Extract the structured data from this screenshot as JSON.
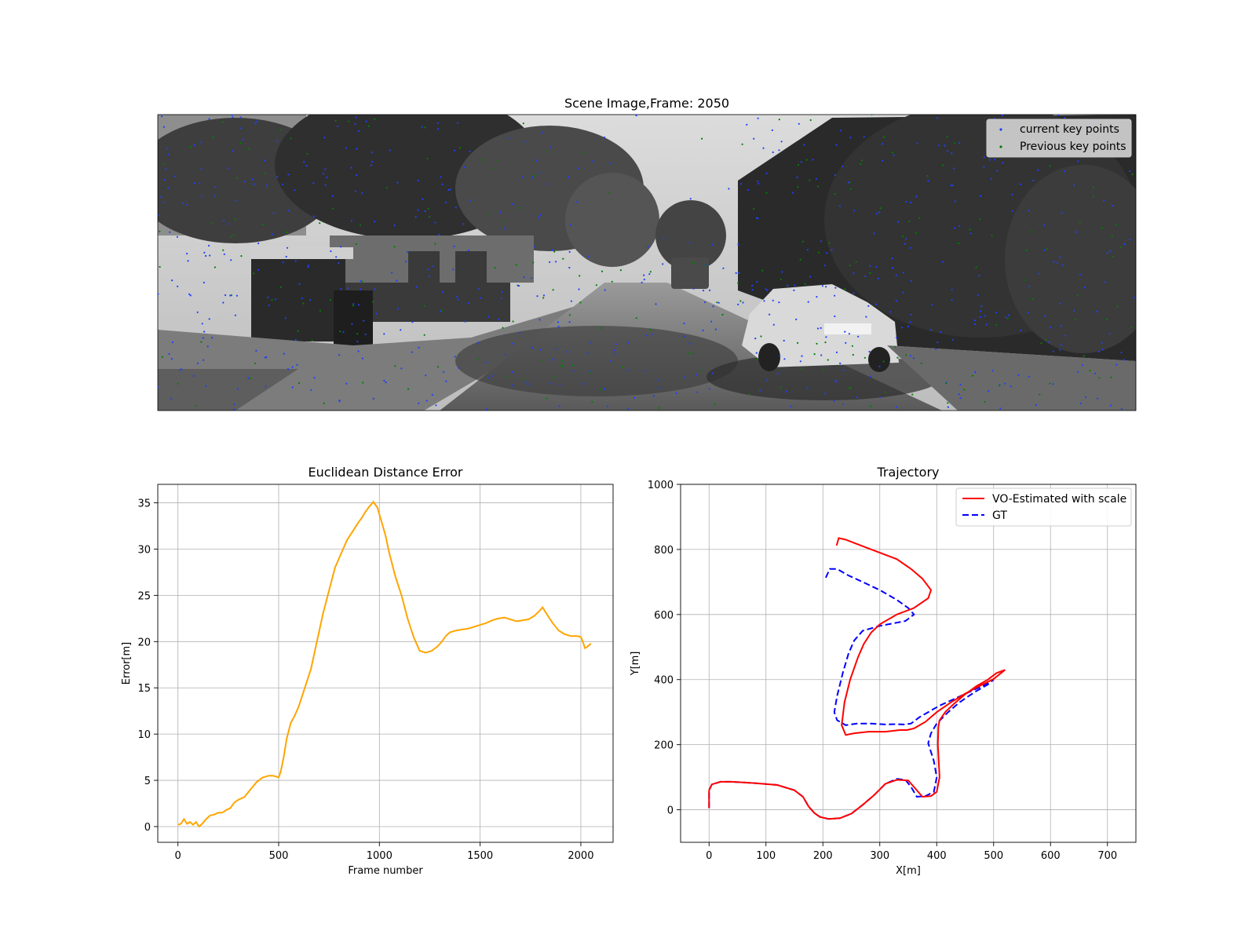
{
  "chart_data": [
    {
      "type": "image",
      "title": "Scene Image,Frame: 2050",
      "legend": {
        "placement": "top-right",
        "entries": [
          {
            "label": "current key points",
            "color": "#1f3fff"
          },
          {
            "label": "Previous key points",
            "color": "#008000"
          }
        ]
      }
    },
    {
      "type": "line",
      "title": "Euclidean Distance Error",
      "xlabel": "Frame number",
      "ylabel": "Error[m]",
      "xlim": [
        -100,
        2160
      ],
      "ylim": [
        -1.7,
        37
      ],
      "xticks": [
        0,
        500,
        1000,
        1500,
        2000
      ],
      "yticks": [
        0,
        5,
        10,
        15,
        20,
        25,
        30,
        35
      ],
      "grid": true,
      "series": [
        {
          "color": "#ffa500",
          "x": [
            0,
            15,
            30,
            45,
            60,
            75,
            90,
            105,
            120,
            140,
            160,
            180,
            200,
            220,
            240,
            260,
            280,
            300,
            330,
            360,
            390,
            420,
            450,
            470,
            490,
            500,
            510,
            525,
            540,
            560,
            580,
            600,
            630,
            660,
            690,
            720,
            750,
            780,
            810,
            840,
            870,
            890,
            900,
            910,
            930,
            950,
            970,
            990,
            1010,
            1030,
            1050,
            1080,
            1110,
            1140,
            1170,
            1200,
            1230,
            1260,
            1290,
            1310,
            1330,
            1350,
            1380,
            1410,
            1440,
            1470,
            1500,
            1530,
            1560,
            1590,
            1620,
            1650,
            1680,
            1710,
            1740,
            1770,
            1790,
            1810,
            1830,
            1860,
            1890,
            1920,
            1950,
            1980,
            2000,
            2010,
            2020,
            2030,
            2050
          ],
          "y": [
            0.2,
            0.3,
            0.8,
            0.3,
            0.5,
            0.2,
            0.5,
            0.0,
            0.3,
            0.8,
            1.2,
            1.3,
            1.5,
            1.5,
            1.8,
            2.0,
            2.6,
            2.9,
            3.2,
            4.0,
            4.8,
            5.3,
            5.5,
            5.5,
            5.4,
            5.3,
            5.9,
            7.5,
            9.5,
            11.2,
            12.0,
            13.0,
            15.0,
            17.0,
            20.0,
            23.0,
            25.5,
            28.0,
            29.5,
            31.0,
            32.0,
            32.7,
            33.0,
            33.3,
            34.0,
            34.6,
            35.1,
            34.5,
            33.0,
            31.5,
            29.5,
            27.0,
            25.0,
            22.5,
            20.5,
            19.0,
            18.8,
            19.0,
            19.5,
            20.0,
            20.6,
            21.0,
            21.2,
            21.3,
            21.4,
            21.6,
            21.8,
            22.0,
            22.3,
            22.5,
            22.6,
            22.4,
            22.2,
            22.3,
            22.4,
            22.8,
            23.2,
            23.7,
            23.0,
            22.0,
            21.2,
            20.8,
            20.6,
            20.6,
            20.5,
            20.0,
            19.3,
            19.4,
            19.8
          ]
        }
      ]
    },
    {
      "type": "line",
      "title": "Trajectory",
      "xlabel": "X[m]",
      "ylabel": "Y[m]",
      "xlim": [
        -50,
        750
      ],
      "ylim": [
        -100,
        1000
      ],
      "xticks": [
        0,
        100,
        200,
        300,
        400,
        500,
        600,
        700
      ],
      "yticks": [
        0,
        200,
        400,
        600,
        800,
        1000
      ],
      "grid": true,
      "legend": {
        "placement": "top-right"
      },
      "series": [
        {
          "name": "VO-Estimated with scale",
          "color": "#ff0000",
          "dash": "solid",
          "x": [
            0,
            0,
            5,
            20,
            40,
            80,
            120,
            150,
            165,
            175,
            185,
            195,
            210,
            230,
            250,
            270,
            290,
            310,
            330,
            350,
            360,
            375,
            390,
            400,
            405,
            402,
            403,
            405,
            415,
            430,
            450,
            470,
            490,
            505,
            520,
            500,
            475,
            450,
            425,
            400,
            380,
            360,
            348,
            335,
            310,
            280,
            255,
            240,
            233,
            238,
            248,
            262,
            272,
            285,
            300,
            330,
            360,
            385,
            390,
            375,
            355,
            330,
            300,
            270,
            240,
            228,
            224
          ],
          "y": [
            5,
            60,
            78,
            86,
            86,
            82,
            76,
            60,
            40,
            10,
            -10,
            -22,
            -28,
            -26,
            -12,
            15,
            45,
            80,
            92,
            90,
            70,
            40,
            42,
            55,
            100,
            200,
            255,
            275,
            300,
            325,
            355,
            380,
            400,
            420,
            430,
            402,
            380,
            357,
            330,
            300,
            270,
            250,
            245,
            245,
            240,
            240,
            235,
            230,
            260,
            330,
            400,
            470,
            510,
            545,
            570,
            600,
            620,
            650,
            675,
            710,
            740,
            770,
            790,
            810,
            830,
            835,
            812
          ]
        },
        {
          "name": "GT",
          "color": "#0000ff",
          "dash": "dashed",
          "x": [
            0,
            0,
            5,
            20,
            40,
            80,
            120,
            150,
            165,
            175,
            185,
            195,
            210,
            230,
            250,
            270,
            290,
            310,
            330,
            345,
            355,
            365,
            380,
            395,
            400,
            395,
            385,
            390,
            400,
            420,
            440,
            455,
            470,
            490,
            500,
            480,
            455,
            430,
            405,
            385,
            370,
            355,
            345,
            330,
            310,
            285,
            260,
            240,
            225,
            220,
            225,
            235,
            245,
            255,
            270,
            300,
            330,
            345,
            360,
            350,
            330,
            300,
            270,
            245,
            225,
            212,
            205
          ],
          "y": [
            5,
            60,
            78,
            86,
            86,
            82,
            76,
            60,
            40,
            10,
            -10,
            -22,
            -28,
            -26,
            -12,
            15,
            45,
            80,
            95,
            92,
            70,
            40,
            42,
            55,
            100,
            150,
            205,
            235,
            265,
            300,
            330,
            348,
            365,
            385,
            400,
            380,
            360,
            340,
            320,
            300,
            285,
            265,
            262,
            263,
            262,
            265,
            265,
            260,
            275,
            300,
            350,
            420,
            480,
            520,
            550,
            565,
            575,
            580,
            600,
            620,
            645,
            675,
            700,
            720,
            740,
            740,
            713
          ]
        }
      ]
    }
  ]
}
